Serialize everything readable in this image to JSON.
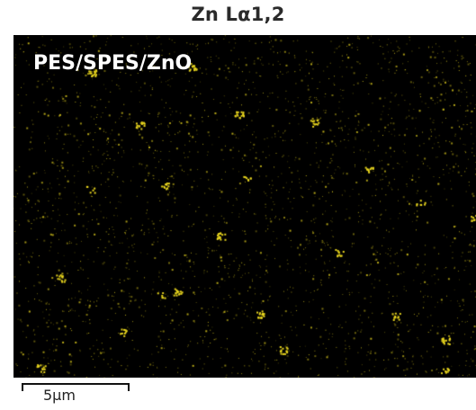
{
  "title": "Zn Lα1,2",
  "sample_label": "PES/SPES/ZnO",
  "scale_bar": {
    "label": "5μm"
  },
  "colors": {
    "background": "#000000",
    "signal": "#e8d51e",
    "label_text": "#ffffff"
  }
}
